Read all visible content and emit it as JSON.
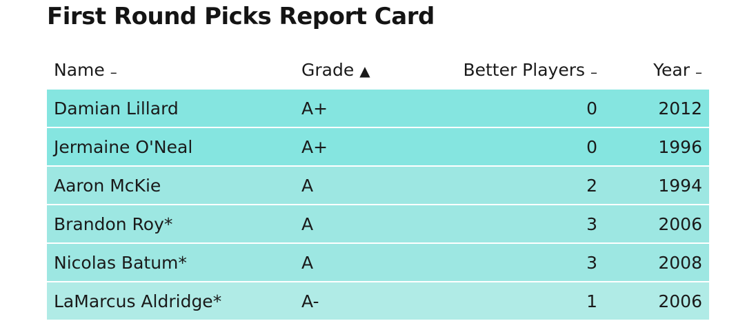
{
  "title": "First Round Picks Report Card",
  "columns": [
    {
      "label": "Name",
      "sort_icon": "dash-icon",
      "sort_glyph": "–"
    },
    {
      "label": "Grade",
      "sort_icon": "sort-ascending-icon",
      "sort_glyph": "▲"
    },
    {
      "label": "Better Players",
      "sort_icon": "dash-icon",
      "sort_glyph": "–"
    },
    {
      "label": "Year",
      "sort_icon": "dash-icon",
      "sort_glyph": "–"
    }
  ],
  "rows": [
    {
      "name": "Damian Lillard",
      "grade": "A+",
      "better_players": "0",
      "year": "2012",
      "color": "#85e5e0"
    },
    {
      "name": "Jermaine O'Neal",
      "grade": "A+",
      "better_players": "0",
      "year": "1996",
      "color": "#85e5e0"
    },
    {
      "name": "Aaron McKie",
      "grade": "A",
      "better_players": "2",
      "year": "1994",
      "color": "#9de7e2"
    },
    {
      "name": "Brandon Roy*",
      "grade": "A",
      "better_players": "3",
      "year": "2006",
      "color": "#9de7e2"
    },
    {
      "name": "Nicolas Batum*",
      "grade": "A",
      "better_players": "3",
      "year": "2008",
      "color": "#9de7e2"
    },
    {
      "name": "LaMarcus Aldridge*",
      "grade": "A-",
      "better_players": "1",
      "year": "2006",
      "color": "#b0ebe6"
    }
  ]
}
